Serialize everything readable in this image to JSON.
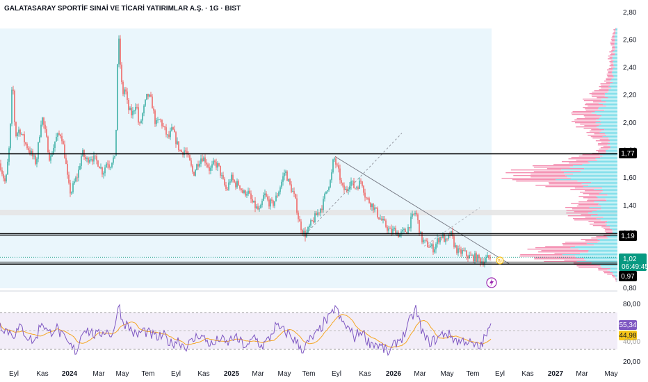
{
  "title": "GALATASARAY SPORTİF SINAİ VE TİCARİ YATIRIMLAR A.Ş. · 1G · BIST",
  "colors": {
    "up": "#26a69a",
    "down": "#ef5350",
    "rsi": "#7e57c2",
    "rsi_ma": "#f5a623",
    "vp_up": "#80deea",
    "vp_down": "#f48fb1",
    "range_fill": "#eaf6fc",
    "zone": "#e0e0e0",
    "current": "#089981"
  },
  "chart_data": {
    "type": "candlestick",
    "x_labels": [
      "Eyl",
      "Kas",
      "2024",
      "Mar",
      "May",
      "Tem",
      "Eyl",
      "Kas",
      "2025",
      "Mar",
      "May",
      "Tem",
      "Eyl",
      "Kas",
      "2026",
      "Mar",
      "May",
      "Tem",
      "Eyl",
      "Kas",
      "2027",
      "Mar",
      "May"
    ],
    "bold_labels": [
      "2024",
      "2025",
      "2026",
      "2027"
    ],
    "price_axis": {
      "ticks": [
        "2,80",
        "2,60",
        "2,40",
        "2,20",
        "2,00",
        "1,80",
        "1,60",
        "1,40",
        "1,20",
        "0,80"
      ],
      "tick_values": [
        2.8,
        2.6,
        2.4,
        2.2,
        2.0,
        1.8,
        1.6,
        1.4,
        1.2,
        0.8
      ],
      "ylim": [
        0.8,
        2.8
      ]
    },
    "price_path_anchors": [
      [
        0,
        1.7
      ],
      [
        4,
        1.62
      ],
      [
        8,
        1.55
      ],
      [
        14,
        1.85
      ],
      [
        18,
        2.33
      ],
      [
        22,
        1.9
      ],
      [
        28,
        1.95
      ],
      [
        36,
        1.85
      ],
      [
        44,
        1.78
      ],
      [
        52,
        1.7
      ],
      [
        60,
        2.05
      ],
      [
        66,
        1.9
      ],
      [
        72,
        1.72
      ],
      [
        80,
        1.88
      ],
      [
        88,
        1.92
      ],
      [
        94,
        1.73
      ],
      [
        98,
        1.55
      ],
      [
        102,
        1.48
      ],
      [
        106,
        1.55
      ],
      [
        112,
        1.62
      ],
      [
        118,
        1.78
      ],
      [
        124,
        1.72
      ],
      [
        130,
        1.75
      ],
      [
        136,
        1.73
      ],
      [
        142,
        1.7
      ],
      [
        148,
        1.63
      ],
      [
        154,
        1.72
      ],
      [
        158,
        1.68
      ],
      [
        162,
        1.74
      ],
      [
        166,
        1.72
      ],
      [
        170,
        2.66
      ],
      [
        173,
        2.42
      ],
      [
        176,
        2.2
      ],
      [
        180,
        2.25
      ],
      [
        184,
        2.1
      ],
      [
        190,
        2.05
      ],
      [
        196,
        2.15
      ],
      [
        200,
        1.95
      ],
      [
        206,
        2.08
      ],
      [
        212,
        2.2
      ],
      [
        218,
        2.15
      ],
      [
        224,
        1.98
      ],
      [
        230,
        2.02
      ],
      [
        236,
        1.95
      ],
      [
        242,
        1.88
      ],
      [
        248,
        1.95
      ],
      [
        254,
        1.85
      ],
      [
        260,
        1.78
      ],
      [
        266,
        1.8
      ],
      [
        272,
        1.72
      ],
      [
        278,
        1.62
      ],
      [
        284,
        1.7
      ],
      [
        290,
        1.75
      ],
      [
        296,
        1.72
      ],
      [
        302,
        1.65
      ],
      [
        308,
        1.7
      ],
      [
        314,
        1.68
      ],
      [
        320,
        1.58
      ],
      [
        326,
        1.5
      ],
      [
        332,
        1.6
      ],
      [
        338,
        1.55
      ],
      [
        344,
        1.55
      ],
      [
        350,
        1.48
      ],
      [
        356,
        1.5
      ],
      [
        362,
        1.42
      ],
      [
        368,
        1.38
      ],
      [
        374,
        1.35
      ],
      [
        380,
        1.48
      ],
      [
        386,
        1.42
      ],
      [
        392,
        1.4
      ],
      [
        398,
        1.46
      ],
      [
        404,
        1.55
      ],
      [
        410,
        1.65
      ],
      [
        416,
        1.55
      ],
      [
        422,
        1.48
      ],
      [
        426,
        1.4
      ],
      [
        430,
        1.28
      ],
      [
        436,
        1.2
      ],
      [
        440,
        1.18
      ],
      [
        446,
        1.25
      ],
      [
        452,
        1.3
      ],
      [
        458,
        1.35
      ],
      [
        464,
        1.4
      ],
      [
        470,
        1.52
      ],
      [
        476,
        1.58
      ],
      [
        480,
        1.75
      ],
      [
        484,
        1.68
      ],
      [
        488,
        1.62
      ],
      [
        492,
        1.52
      ],
      [
        498,
        1.5
      ],
      [
        504,
        1.58
      ],
      [
        510,
        1.52
      ],
      [
        516,
        1.55
      ],
      [
        520,
        1.58
      ],
      [
        526,
        1.45
      ],
      [
        532,
        1.42
      ],
      [
        538,
        1.38
      ],
      [
        544,
        1.32
      ],
      [
        550,
        1.28
      ],
      [
        556,
        1.24
      ],
      [
        562,
        1.2
      ],
      [
        568,
        1.22
      ],
      [
        574,
        1.18
      ],
      [
        580,
        1.2
      ],
      [
        586,
        1.22
      ],
      [
        592,
        1.3
      ],
      [
        598,
        1.35
      ],
      [
        602,
        1.25
      ],
      [
        606,
        1.15
      ],
      [
        612,
        1.12
      ],
      [
        618,
        1.1
      ],
      [
        624,
        1.08
      ],
      [
        630,
        1.15
      ],
      [
        636,
        1.18
      ],
      [
        642,
        1.12
      ],
      [
        648,
        1.2
      ],
      [
        654,
        1.1
      ],
      [
        660,
        1.05
      ],
      [
        666,
        1.06
      ],
      [
        672,
        1.03
      ],
      [
        678,
        1.02
      ],
      [
        684,
        1.02
      ],
      [
        690,
        1.0
      ],
      [
        696,
        0.99
      ],
      [
        700,
        1.01
      ],
      [
        706,
        1.02
      ]
    ],
    "rsi_anchors": [
      [
        0,
        58
      ],
      [
        10,
        52
      ],
      [
        20,
        48
      ],
      [
        30,
        55
      ],
      [
        40,
        45
      ],
      [
        50,
        40
      ],
      [
        60,
        62
      ],
      [
        70,
        48
      ],
      [
        80,
        56
      ],
      [
        90,
        45
      ],
      [
        100,
        36
      ],
      [
        110,
        30
      ],
      [
        120,
        55
      ],
      [
        130,
        50
      ],
      [
        140,
        46
      ],
      [
        150,
        52
      ],
      [
        160,
        48
      ],
      [
        166,
        55
      ],
      [
        170,
        82
      ],
      [
        176,
        62
      ],
      [
        186,
        55
      ],
      [
        196,
        46
      ],
      [
        206,
        52
      ],
      [
        216,
        48
      ],
      [
        226,
        44
      ],
      [
        236,
        46
      ],
      [
        246,
        38
      ],
      [
        256,
        42
      ],
      [
        266,
        35
      ],
      [
        276,
        40
      ],
      [
        286,
        48
      ],
      [
        296,
        42
      ],
      [
        306,
        36
      ],
      [
        316,
        44
      ],
      [
        326,
        38
      ],
      [
        336,
        45
      ],
      [
        346,
        40
      ],
      [
        356,
        34
      ],
      [
        366,
        46
      ],
      [
        376,
        35
      ],
      [
        386,
        42
      ],
      [
        396,
        56
      ],
      [
        406,
        52
      ],
      [
        416,
        48
      ],
      [
        426,
        40
      ],
      [
        436,
        32
      ],
      [
        446,
        42
      ],
      [
        456,
        48
      ],
      [
        466,
        60
      ],
      [
        476,
        66
      ],
      [
        482,
        78
      ],
      [
        490,
        62
      ],
      [
        500,
        55
      ],
      [
        510,
        45
      ],
      [
        520,
        52
      ],
      [
        530,
        40
      ],
      [
        540,
        38
      ],
      [
        550,
        34
      ],
      [
        560,
        28
      ],
      [
        570,
        40
      ],
      [
        580,
        46
      ],
      [
        590,
        62
      ],
      [
        598,
        74
      ],
      [
        604,
        58
      ],
      [
        612,
        42
      ],
      [
        620,
        40
      ],
      [
        630,
        44
      ],
      [
        640,
        50
      ],
      [
        650,
        45
      ],
      [
        660,
        40
      ],
      [
        670,
        42
      ],
      [
        680,
        36
      ],
      [
        690,
        34
      ],
      [
        700,
        48
      ],
      [
        706,
        55
      ]
    ],
    "rsi_axis": {
      "ticks": [
        "80,00",
        "20,00"
      ],
      "tick_values": [
        80,
        20
      ],
      "ylim": [
        20,
        90
      ],
      "upper": 70,
      "mid": 50,
      "lower": 30
    },
    "horizontal_levels": [
      1.77,
      1.19,
      0.97
    ],
    "level_tags": [
      "1,77",
      "1,19",
      "0,97"
    ],
    "current_price": "1,02",
    "countdown": "06:49:45",
    "rsi_values": {
      "rsi": "55,34",
      "ma": "44,98"
    },
    "rsi_label_partial": "40,00"
  }
}
